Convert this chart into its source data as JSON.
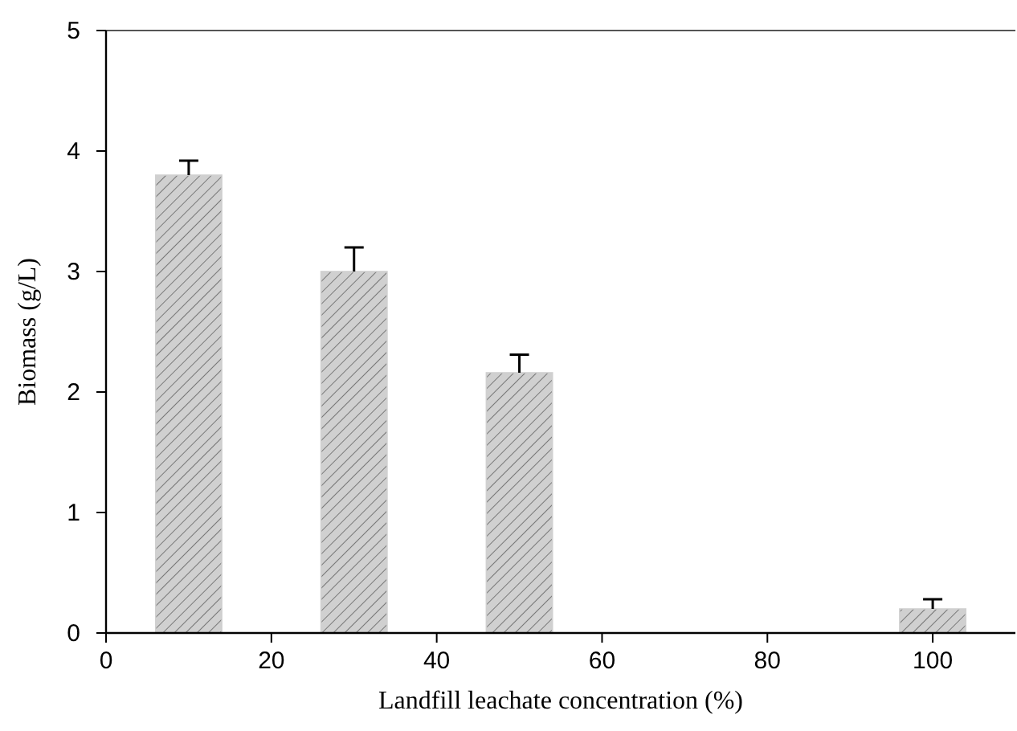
{
  "chart_data": {
    "type": "bar",
    "xlabel": "Landfill leachate concentration (%)",
    "ylabel": "Biomass (g/L)",
    "x": [
      10,
      30,
      50,
      100
    ],
    "values": [
      3.8,
      3.0,
      2.16,
      0.2
    ],
    "errors": [
      0.12,
      0.2,
      0.15,
      0.08
    ],
    "color": "#d0d0d0",
    "xlim": [
      0,
      110
    ],
    "xticks": [
      0,
      20,
      40,
      60,
      80,
      100
    ],
    "ylim": [
      0,
      5
    ],
    "yticks": [
      0,
      1,
      2,
      3,
      4,
      5
    ],
    "grid": false
  }
}
